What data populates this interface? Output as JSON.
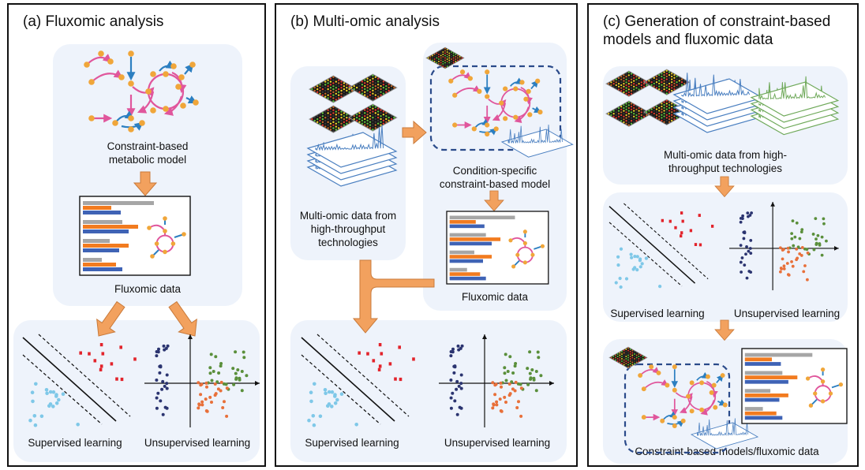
{
  "colors": {
    "card_background": "#eef3fb",
    "node": "#f0a63a",
    "reaction_pink": "#e0569c",
    "reaction_blue": "#2c7fc1",
    "bar_gray": "#a6a6a6",
    "bar_orange": "#f27b1f",
    "bar_blue": "#3f63b5",
    "arrow": "#f2a15e",
    "points_cyan": "#7fc8e8",
    "points_red": "#e2232b",
    "points_navy": "#2b3470",
    "points_orange": "#e8703a",
    "points_green": "#5a8f3b",
    "spectra_blue": "#4a7fc0",
    "spectra_green": "#6fa95a"
  },
  "panel_a": {
    "title": "(a) Fluxomic analysis",
    "model_label": "Constraint-based metabolic model",
    "flux_label": "Fluxomic data",
    "supervised_label": "Supervised learning",
    "unsupervised_label": "Unsupervised learning"
  },
  "panel_b": {
    "title": "(b) Multi-omic analysis",
    "omics_label": "Multi-omic data from high-throughput technologies",
    "model_label": "Condition-specific constraint-based model",
    "flux_label": "Fluxomic data",
    "supervised_label": "Supervised learning",
    "unsupervised_label": "Unsupervised learning"
  },
  "panel_c": {
    "title": "(c) Generation of constraint-based models and fluxomic data",
    "omics_label": "Multi-omic data from high-throughput technologies",
    "supervised_label": "Supervised learning",
    "unsupervised_label": "Unsupervised learning",
    "models_label": "Constraint-based models/fluxomic data"
  },
  "icons": [
    "metabolic-network-icon",
    "bar-chart-icon",
    "microarray-icon",
    "spectrum-icon",
    "classifier-plot-icon",
    "cluster-plot-icon",
    "down-arrow-icon"
  ]
}
